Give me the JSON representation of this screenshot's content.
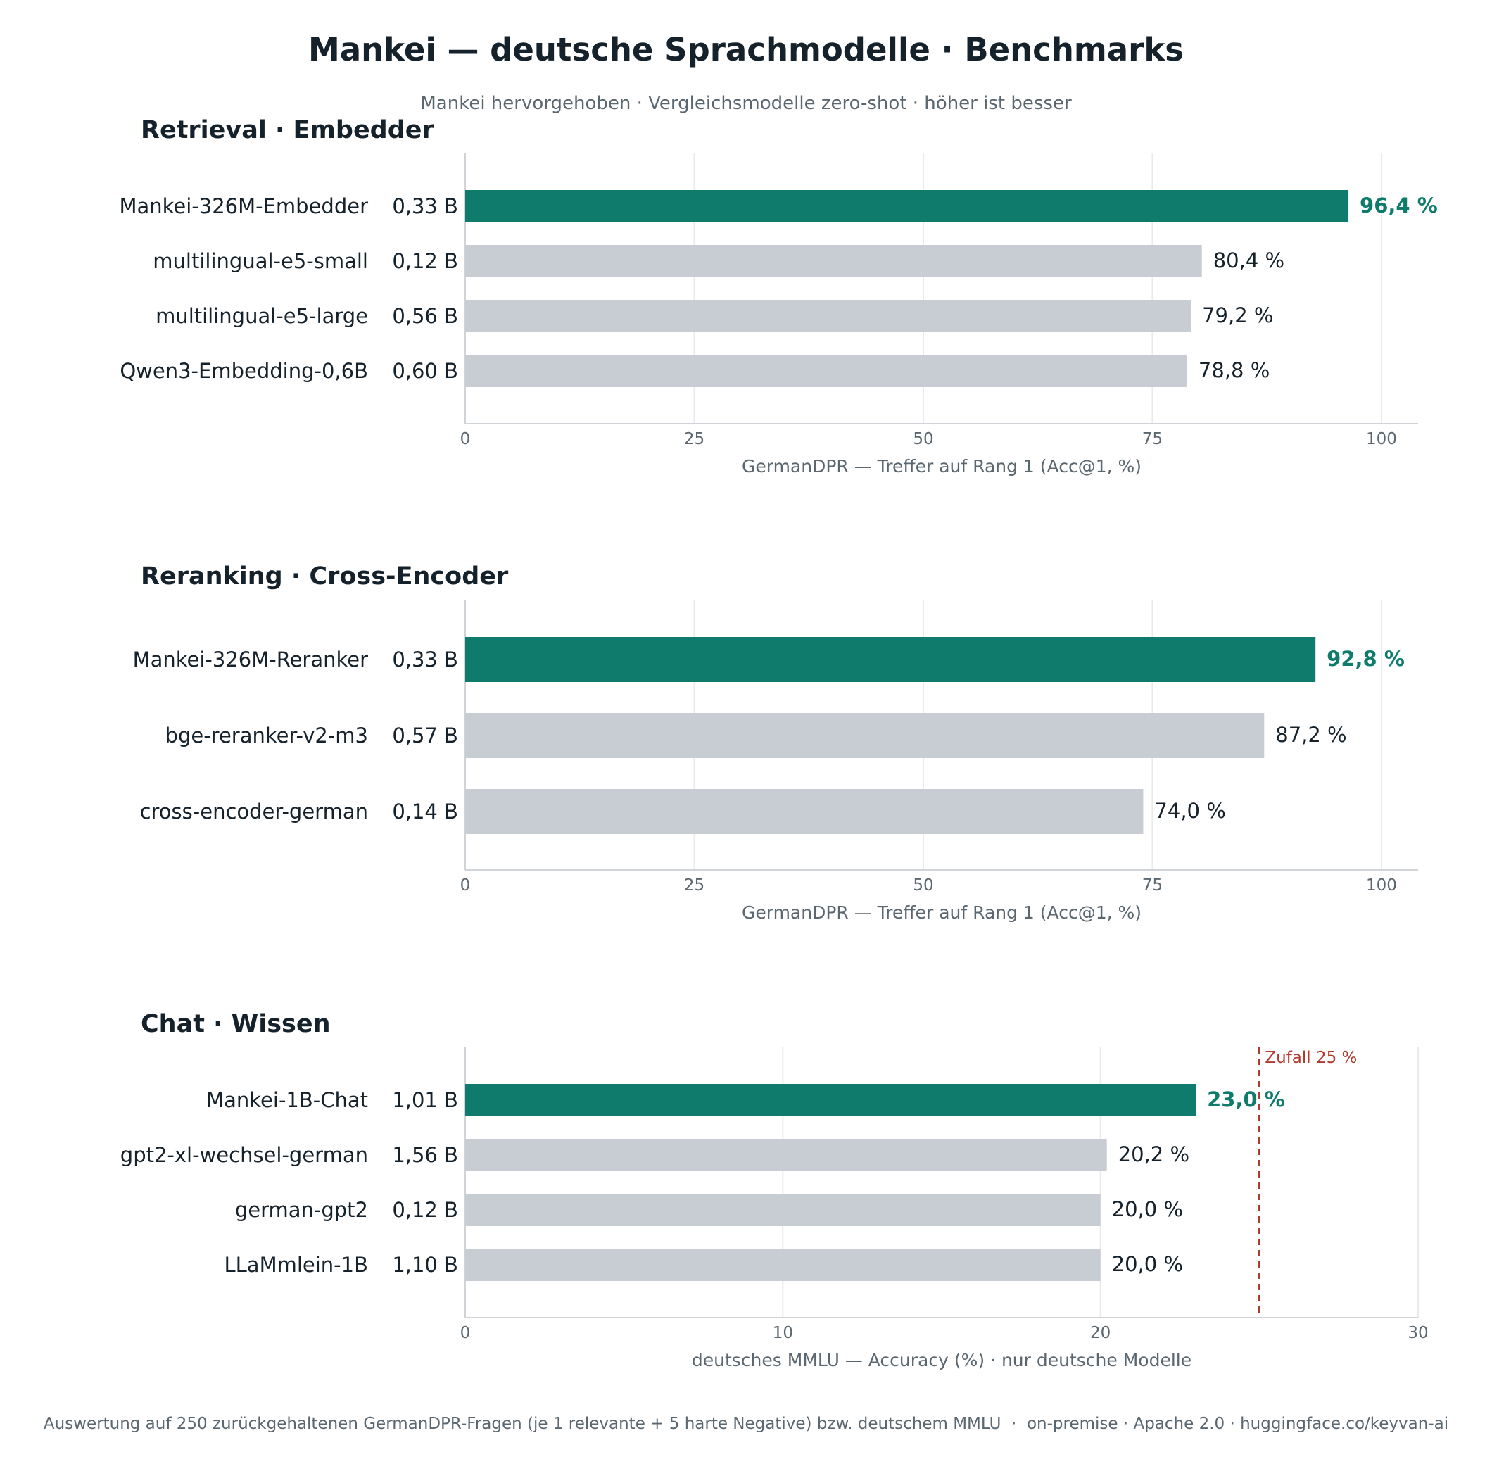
{
  "title": "Mankei — deutsche Sprachmodelle · Benchmarks",
  "subtitle": "Mankei hervorgehoben · Vergleichsmodelle zero-shot · höher ist besser",
  "footer": "Auswertung auf 250 zurückgehaltenen GermanDPR-Fragen (je 1 relevante + 5 harte Negative) bzw. deutschem MMLU  ·  on-premise · Apache 2.0 · huggingface.co/keyvan-ai",
  "colors": {
    "highlight": "#0f7b6c",
    "bar": "#c7cdd3",
    "grid": "#e8eaec",
    "axis": "#d0d4d8",
    "reference": "#b03a2e",
    "text": "#16222b",
    "muted": "#5a6770"
  },
  "chart_data": [
    {
      "type": "bar",
      "orientation": "horizontal",
      "title": "Retrieval · Embedder",
      "xlabel": "GermanDPR — Treffer auf Rang 1 (Acc@1, %)",
      "xlim": [
        0,
        104
      ],
      "xticks": [
        0,
        25,
        50,
        75,
        100
      ],
      "grid": true,
      "categories": [
        "Mankei-326M-Embedder",
        "multilingual-e5-small",
        "multilingual-e5-large",
        "Qwen3-Embedding-0,6B"
      ],
      "sizes": [
        "0,33 B",
        "0,12 B",
        "0,56 B",
        "0,60 B"
      ],
      "values": [
        96.4,
        80.4,
        79.2,
        78.8
      ],
      "value_labels": [
        "96,4 %",
        "80,4 %",
        "79,2 %",
        "78,8 %"
      ],
      "highlight": [
        true,
        false,
        false,
        false
      ]
    },
    {
      "type": "bar",
      "orientation": "horizontal",
      "title": "Reranking · Cross-Encoder",
      "xlabel": "GermanDPR — Treffer auf Rang 1 (Acc@1, %)",
      "xlim": [
        0,
        104
      ],
      "xticks": [
        0,
        25,
        50,
        75,
        100
      ],
      "grid": true,
      "categories": [
        "Mankei-326M-Reranker",
        "bge-reranker-v2-m3",
        "cross-encoder-german"
      ],
      "sizes": [
        "0,33 B",
        "0,57 B",
        "0,14 B"
      ],
      "values": [
        92.8,
        87.2,
        74.0
      ],
      "value_labels": [
        "92,8 %",
        "87,2 %",
        "74,0 %"
      ],
      "highlight": [
        true,
        false,
        false
      ]
    },
    {
      "type": "bar",
      "orientation": "horizontal",
      "title": "Chat · Wissen",
      "xlabel": "deutsches MMLU — Accuracy (%) · nur deutsche Modelle",
      "xlim": [
        0,
        30
      ],
      "xticks": [
        0,
        10,
        20,
        30
      ],
      "grid": true,
      "categories": [
        "Mankei-1B-Chat",
        "gpt2-xl-wechsel-german",
        "german-gpt2",
        "LLaMmlein-1B"
      ],
      "sizes": [
        "1,01 B",
        "1,56 B",
        "0,12 B",
        "1,10 B"
      ],
      "values": [
        23.0,
        20.2,
        20.0,
        20.0
      ],
      "value_labels": [
        "23,0 %",
        "20,2 %",
        "20,0 %",
        "20,0 %"
      ],
      "highlight": [
        true,
        false,
        false,
        false
      ],
      "reference_line": {
        "value": 25,
        "label": "Zufall 25 %"
      }
    }
  ]
}
